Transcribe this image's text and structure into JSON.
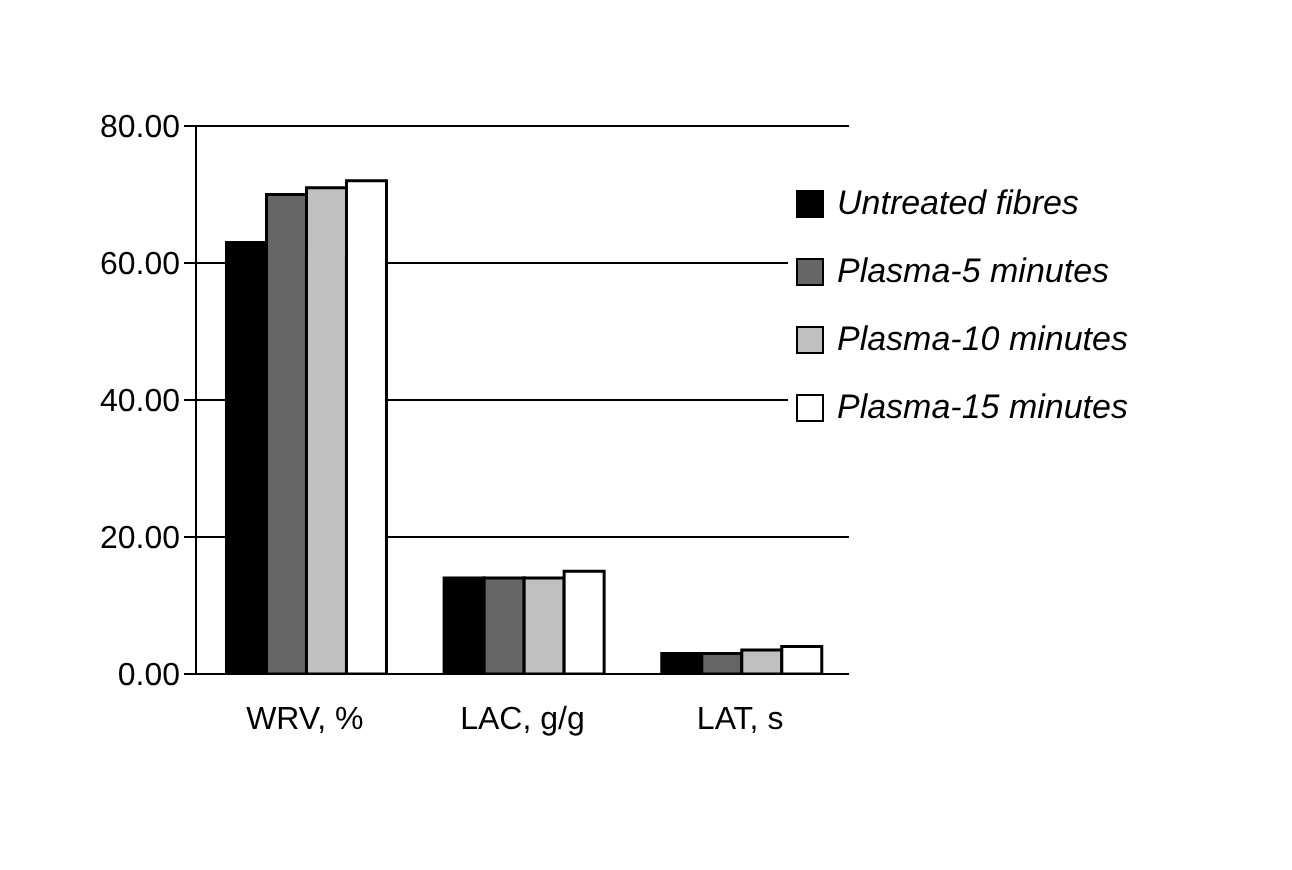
{
  "chart_data": {
    "type": "bar",
    "categories": [
      "WRV, %",
      "LAC, g/g",
      "LAT, s"
    ],
    "series": [
      {
        "name": "Untreated fibres",
        "color": "#000000",
        "values": [
          63,
          14,
          3
        ]
      },
      {
        "name": "Plasma-5 minutes",
        "color": "#666666",
        "values": [
          70,
          14,
          3
        ]
      },
      {
        "name": "Plasma-10 minutes",
        "color": "#c0c0c0",
        "values": [
          71,
          14,
          3.5
        ]
      },
      {
        "name": "Plasma-15 minutes",
        "color": "#ffffff",
        "values": [
          72,
          15,
          4
        ]
      }
    ],
    "ylim": [
      0,
      80
    ],
    "yticks": [
      {
        "value": 0,
        "label": "0.00"
      },
      {
        "value": 20,
        "label": "20.00"
      },
      {
        "value": 40,
        "label": "40.00"
      },
      {
        "value": 60,
        "label": "60.00"
      },
      {
        "value": 80,
        "label": "80.00"
      }
    ],
    "grid": "y",
    "legend": "top right"
  }
}
